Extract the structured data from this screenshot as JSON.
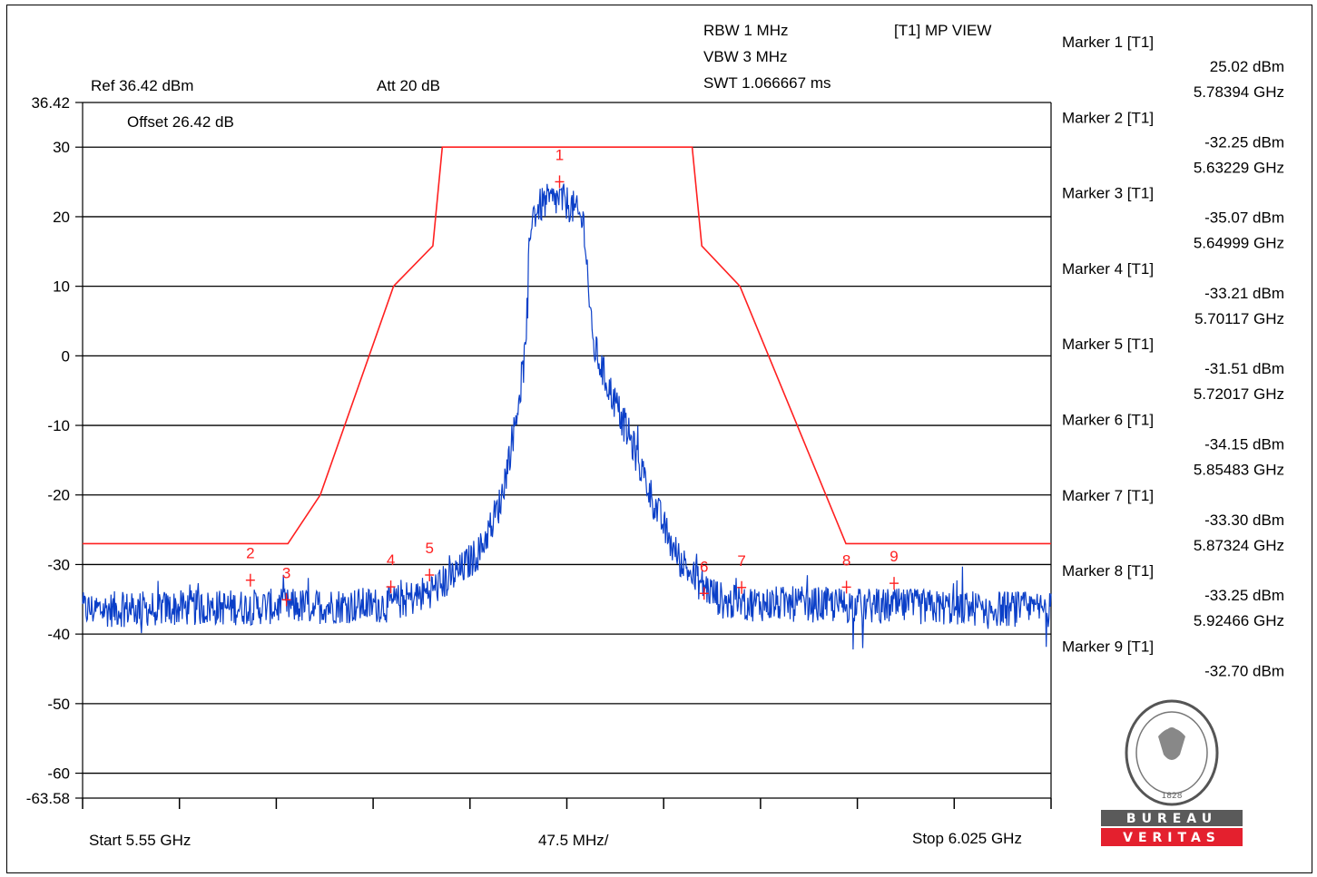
{
  "header": {
    "rbw": "RBW 1 MHz",
    "vbw": "VBW 3 MHz",
    "swt": "SWT 1.066667 ms",
    "view": "[T1] MP VIEW",
    "ref": "Ref 36.42 dBm",
    "att": "Att  20 dB",
    "offset": "Offset 26.42 dB"
  },
  "footer": {
    "start": "Start 5.55 GHz",
    "span_per_div": "47.5 MHz/",
    "stop": "Stop 6.025 GHz"
  },
  "logo": {
    "top_text": "BUREAU",
    "bottom_text": "VERITAS",
    "year": "1828",
    "red_color": "#e4202e"
  },
  "markers_panel": [
    {
      "label": "Marker 1 [T1]",
      "level": "25.02 dBm",
      "freq": "5.78394 GHz"
    },
    {
      "label": "Marker 2 [T1]",
      "level": "-32.25 dBm",
      "freq": "5.63229 GHz"
    },
    {
      "label": "Marker 3 [T1]",
      "level": "-35.07 dBm",
      "freq": "5.64999 GHz"
    },
    {
      "label": "Marker 4 [T1]",
      "level": "-33.21 dBm",
      "freq": "5.70117 GHz"
    },
    {
      "label": "Marker 5 [T1]",
      "level": "-31.51 dBm",
      "freq": "5.72017 GHz"
    },
    {
      "label": "Marker 6 [T1]",
      "level": "-34.15 dBm",
      "freq": "5.85483 GHz"
    },
    {
      "label": "Marker 7 [T1]",
      "level": "-33.30 dBm",
      "freq": "5.87324 GHz"
    },
    {
      "label": "Marker 8 [T1]",
      "level": "-33.25 dBm",
      "freq": "5.92466 GHz"
    },
    {
      "label": "Marker 9 [T1]",
      "level": "-32.70 dBm",
      "freq": ""
    }
  ],
  "chart_data": {
    "type": "line",
    "xlim": [
      5.55,
      6.025
    ],
    "ylim": [
      -63.58,
      36.42
    ],
    "x_unit": "GHz",
    "y_unit": "dBm",
    "y_tick_labels": [
      "36.42",
      "30",
      "20",
      "10",
      "0",
      "-10",
      "-20",
      "-30",
      "-40",
      "-50",
      "-60",
      "-63.58"
    ],
    "y_tick_values": [
      36.42,
      30,
      20,
      10,
      0,
      -10,
      -20,
      -30,
      -40,
      -50,
      -60,
      -63.58
    ],
    "x_divisions": 10,
    "grid": true,
    "colors": {
      "trace": "#0b3fc8",
      "limit": "#ff2020",
      "grid": "#000000"
    },
    "limit_line": {
      "name": "",
      "x": [
        5.55,
        5.6507,
        5.6666,
        5.7025,
        5.7218,
        5.7264,
        5.849,
        5.8537,
        5.8724,
        5.9244,
        6.025
      ],
      "y": [
        -27,
        -27,
        -20,
        10,
        15.8,
        30,
        30,
        15.8,
        10,
        -27,
        -27
      ]
    },
    "trace_envelope": {
      "name": "",
      "x": [
        5.55,
        5.7,
        5.715,
        5.725,
        5.735,
        5.745,
        5.755,
        5.762,
        5.767,
        5.77,
        5.776,
        5.784,
        5.79,
        5.796,
        5.8,
        5.806,
        5.813,
        5.82,
        5.83,
        5.84,
        5.85,
        5.865,
        6.025
      ],
      "y": [
        -36.5,
        -35.8,
        -34.5,
        -33,
        -31,
        -28,
        -21,
        -10,
        0,
        20,
        22,
        22.5,
        21.5,
        19,
        2,
        -3,
        -8,
        -13,
        -21,
        -28,
        -32,
        -35.5,
        -36.5
      ]
    },
    "markers": [
      {
        "n": "1",
        "x": 5.78394,
        "y": 25.02
      },
      {
        "n": "2",
        "x": 5.63229,
        "y": -32.25
      },
      {
        "n": "3",
        "x": 5.64999,
        "y": -35.07
      },
      {
        "n": "4",
        "x": 5.70117,
        "y": -33.21
      },
      {
        "n": "5",
        "x": 5.72017,
        "y": -31.51
      },
      {
        "n": "6",
        "x": 5.85483,
        "y": -34.15
      },
      {
        "n": "7",
        "x": 5.87324,
        "y": -33.3
      },
      {
        "n": "8",
        "x": 5.92466,
        "y": -33.25
      },
      {
        "n": "9",
        "x": 5.948,
        "y": -32.7
      }
    ]
  }
}
